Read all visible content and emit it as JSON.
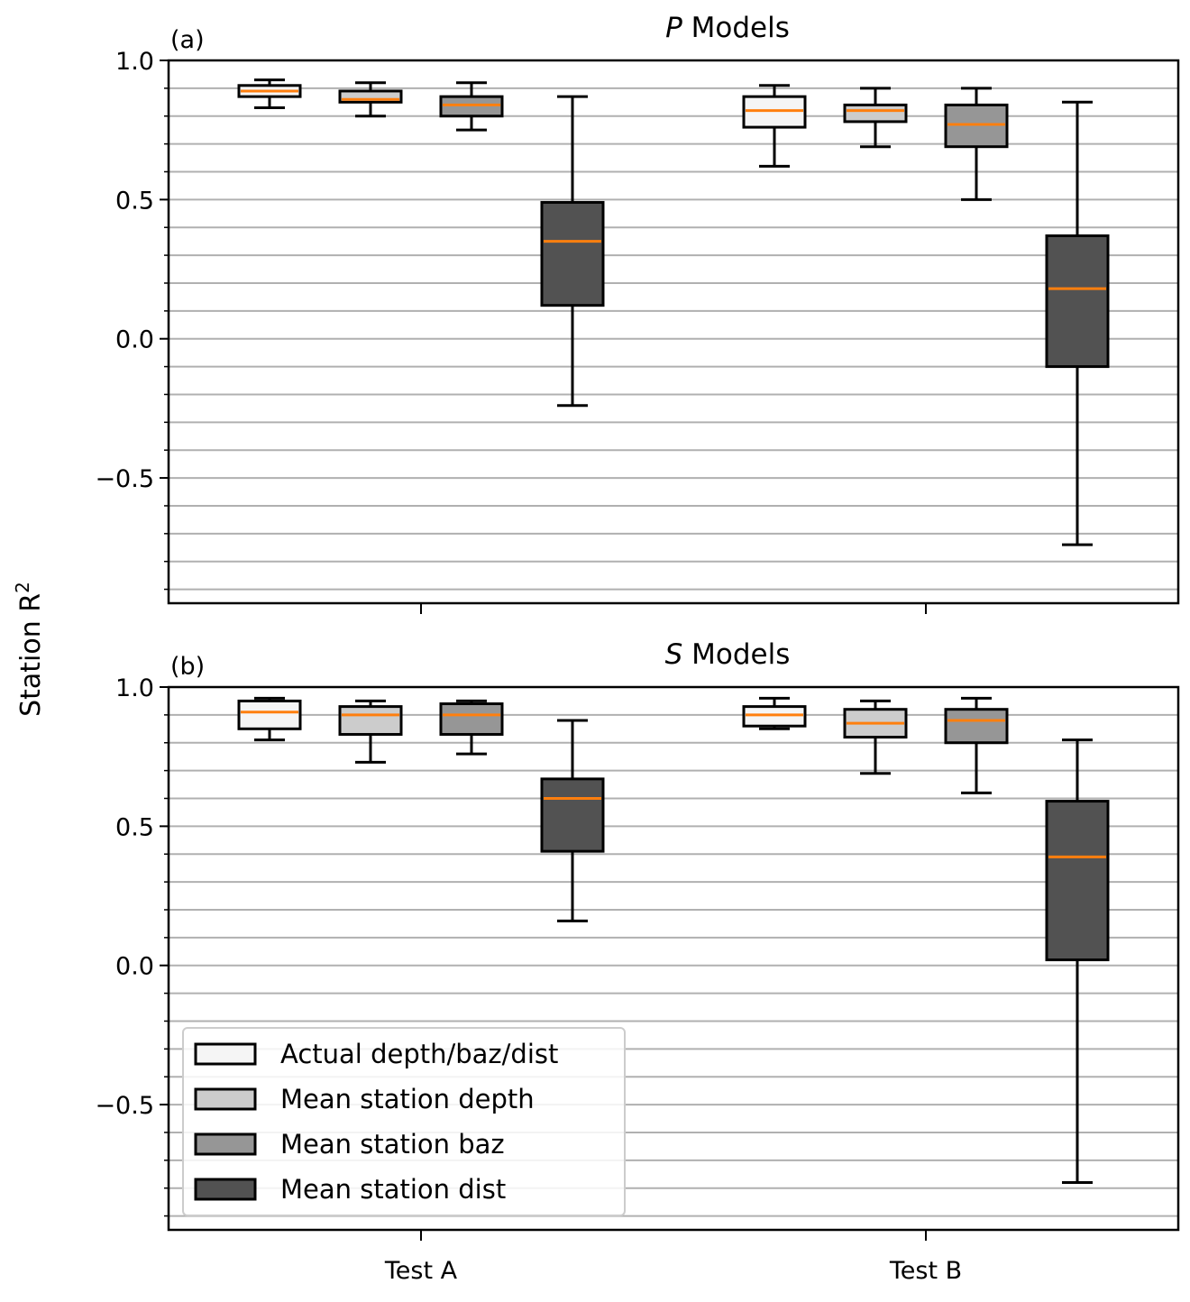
{
  "figure": {
    "ylabel_main": "Station R",
    "ylabel_sup": "2"
  },
  "chart_data": [
    {
      "type": "box",
      "panel_label": "(a)",
      "title_italic": "P",
      "title_rest": " Models",
      "categories": [
        "Test A",
        "Test B"
      ],
      "ylim": [
        -0.95,
        1.0
      ],
      "yticks": [
        -0.5,
        0.0,
        0.5,
        1.0
      ],
      "ytick_labels": [
        "−0.5",
        "0.0",
        "0.5",
        "1.0"
      ],
      "grid": "horizontal minor, every 0.1",
      "series": [
        {
          "name": "Actual depth/baz/dist",
          "color": "#f5f5f5",
          "boxes": [
            {
              "whislo": 0.83,
              "q1": 0.87,
              "med": 0.89,
              "q3": 0.91,
              "whishi": 0.93
            },
            {
              "whislo": 0.62,
              "q1": 0.76,
              "med": 0.82,
              "q3": 0.87,
              "whishi": 0.91
            }
          ]
        },
        {
          "name": "Mean station depth",
          "color": "#cccccc",
          "boxes": [
            {
              "whislo": 0.8,
              "q1": 0.85,
              "med": 0.86,
              "q3": 0.89,
              "whishi": 0.92
            },
            {
              "whislo": 0.69,
              "q1": 0.78,
              "med": 0.82,
              "q3": 0.84,
              "whishi": 0.9
            }
          ]
        },
        {
          "name": "Mean station baz",
          "color": "#969696",
          "boxes": [
            {
              "whislo": 0.75,
              "q1": 0.8,
              "med": 0.84,
              "q3": 0.87,
              "whishi": 0.92
            },
            {
              "whislo": 0.5,
              "q1": 0.69,
              "med": 0.77,
              "q3": 0.84,
              "whishi": 0.9
            }
          ]
        },
        {
          "name": "Mean station dist",
          "color": "#525252",
          "boxes": [
            {
              "whislo": -0.24,
              "q1": 0.12,
              "med": 0.35,
              "q3": 0.49,
              "whishi": 0.87
            },
            {
              "whislo": -0.74,
              "q1": -0.1,
              "med": 0.18,
              "q3": 0.37,
              "whishi": 0.85
            }
          ]
        }
      ]
    },
    {
      "type": "box",
      "panel_label": "(b)",
      "title_italic": "S",
      "title_rest": " Models",
      "categories": [
        "Test A",
        "Test B"
      ],
      "ylim": [
        -0.95,
        1.0
      ],
      "yticks": [
        -0.5,
        0.0,
        0.5,
        1.0
      ],
      "ytick_labels": [
        "−0.5",
        "0.0",
        "0.5",
        "1.0"
      ],
      "grid": "horizontal minor, every 0.1",
      "legend": "lower-left",
      "series": [
        {
          "name": "Actual depth/baz/dist",
          "color": "#f5f5f5",
          "boxes": [
            {
              "whislo": 0.81,
              "q1": 0.85,
              "med": 0.91,
              "q3": 0.95,
              "whishi": 0.96
            },
            {
              "whislo": 0.85,
              "q1": 0.86,
              "med": 0.9,
              "q3": 0.93,
              "whishi": 0.96
            }
          ]
        },
        {
          "name": "Mean station depth",
          "color": "#cccccc",
          "boxes": [
            {
              "whislo": 0.73,
              "q1": 0.83,
              "med": 0.9,
              "q3": 0.93,
              "whishi": 0.95
            },
            {
              "whislo": 0.69,
              "q1": 0.82,
              "med": 0.87,
              "q3": 0.92,
              "whishi": 0.95
            }
          ]
        },
        {
          "name": "Mean station baz",
          "color": "#969696",
          "boxes": [
            {
              "whislo": 0.76,
              "q1": 0.83,
              "med": 0.9,
              "q3": 0.94,
              "whishi": 0.95
            },
            {
              "whislo": 0.62,
              "q1": 0.8,
              "med": 0.88,
              "q3": 0.92,
              "whishi": 0.96
            }
          ]
        },
        {
          "name": "Mean station dist",
          "color": "#525252",
          "boxes": [
            {
              "whislo": 0.16,
              "q1": 0.41,
              "med": 0.6,
              "q3": 0.67,
              "whishi": 0.88
            },
            {
              "whislo": -0.78,
              "q1": 0.02,
              "med": 0.39,
              "q3": 0.59,
              "whishi": 0.81
            }
          ]
        }
      ]
    }
  ],
  "legend_entries": [
    {
      "label": "Actual depth/baz/dist",
      "color": "#f5f5f5"
    },
    {
      "label": "Mean station depth",
      "color": "#cccccc"
    },
    {
      "label": "Mean station baz",
      "color": "#969696"
    },
    {
      "label": "Mean station dist",
      "color": "#525252"
    }
  ],
  "colors": {
    "median": "#ff7f0e",
    "grid": "#b0b0b0",
    "edge": "#000000"
  }
}
